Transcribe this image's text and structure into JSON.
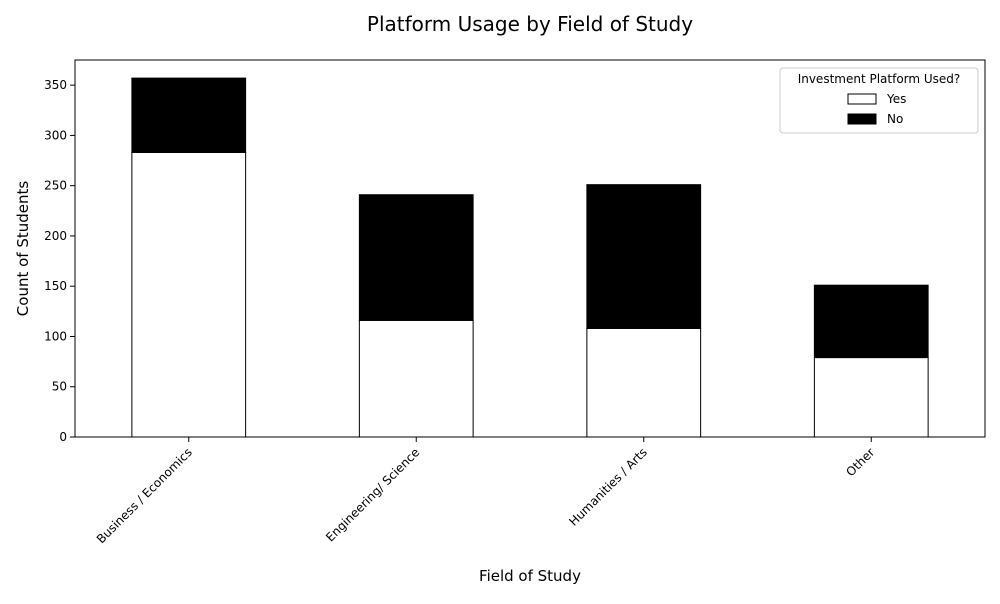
{
  "chart_data": {
    "type": "bar",
    "stacked": true,
    "title": "Platform Usage by Field of Study",
    "xlabel": "Field of Study",
    "ylabel": "Count of Students",
    "categories": [
      "Business / Economics",
      "Engineering/ Science",
      "Humanities / Arts",
      "Other"
    ],
    "series": [
      {
        "name": "Yes",
        "values": [
          283,
          116,
          108,
          79
        ],
        "color": "#ffffff"
      },
      {
        "name": "No",
        "values": [
          74,
          125,
          143,
          72
        ],
        "color": "#000000"
      }
    ],
    "ylim": [
      0,
      375
    ],
    "yticks": [
      0,
      50,
      100,
      150,
      200,
      250,
      300,
      350
    ],
    "grid": false,
    "legend": {
      "title": "Investment Platform Used?",
      "placement": "top-right"
    }
  }
}
